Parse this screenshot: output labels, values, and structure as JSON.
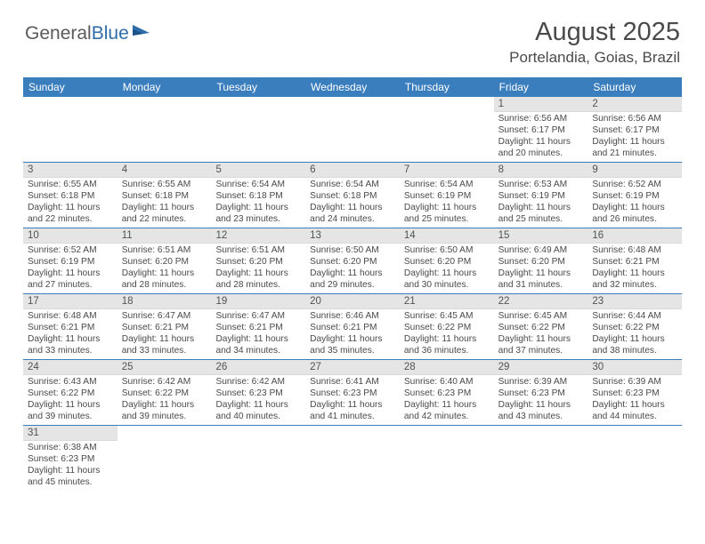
{
  "logo": {
    "text1": "General",
    "text2": "Blue"
  },
  "title": "August 2025",
  "location": "Portelandia, Goias, Brazil",
  "colors": {
    "headerBar": "#3a7ebd",
    "dayStripe": "#e5e5e5",
    "rowBorder": "#3a7ebd",
    "bodyText": "#4a4a4a",
    "background": "#ffffff"
  },
  "days": [
    "Sunday",
    "Monday",
    "Tuesday",
    "Wednesday",
    "Thursday",
    "Friday",
    "Saturday"
  ],
  "weeks": [
    [
      null,
      null,
      null,
      null,
      null,
      {
        "n": "1",
        "sr": "Sunrise: 6:56 AM",
        "ss": "Sunset: 6:17 PM",
        "dl": "Daylight: 11 hours and 20 minutes."
      },
      {
        "n": "2",
        "sr": "Sunrise: 6:56 AM",
        "ss": "Sunset: 6:17 PM",
        "dl": "Daylight: 11 hours and 21 minutes."
      }
    ],
    [
      {
        "n": "3",
        "sr": "Sunrise: 6:55 AM",
        "ss": "Sunset: 6:18 PM",
        "dl": "Daylight: 11 hours and 22 minutes."
      },
      {
        "n": "4",
        "sr": "Sunrise: 6:55 AM",
        "ss": "Sunset: 6:18 PM",
        "dl": "Daylight: 11 hours and 22 minutes."
      },
      {
        "n": "5",
        "sr": "Sunrise: 6:54 AM",
        "ss": "Sunset: 6:18 PM",
        "dl": "Daylight: 11 hours and 23 minutes."
      },
      {
        "n": "6",
        "sr": "Sunrise: 6:54 AM",
        "ss": "Sunset: 6:18 PM",
        "dl": "Daylight: 11 hours and 24 minutes."
      },
      {
        "n": "7",
        "sr": "Sunrise: 6:54 AM",
        "ss": "Sunset: 6:19 PM",
        "dl": "Daylight: 11 hours and 25 minutes."
      },
      {
        "n": "8",
        "sr": "Sunrise: 6:53 AM",
        "ss": "Sunset: 6:19 PM",
        "dl": "Daylight: 11 hours and 25 minutes."
      },
      {
        "n": "9",
        "sr": "Sunrise: 6:52 AM",
        "ss": "Sunset: 6:19 PM",
        "dl": "Daylight: 11 hours and 26 minutes."
      }
    ],
    [
      {
        "n": "10",
        "sr": "Sunrise: 6:52 AM",
        "ss": "Sunset: 6:19 PM",
        "dl": "Daylight: 11 hours and 27 minutes."
      },
      {
        "n": "11",
        "sr": "Sunrise: 6:51 AM",
        "ss": "Sunset: 6:20 PM",
        "dl": "Daylight: 11 hours and 28 minutes."
      },
      {
        "n": "12",
        "sr": "Sunrise: 6:51 AM",
        "ss": "Sunset: 6:20 PM",
        "dl": "Daylight: 11 hours and 28 minutes."
      },
      {
        "n": "13",
        "sr": "Sunrise: 6:50 AM",
        "ss": "Sunset: 6:20 PM",
        "dl": "Daylight: 11 hours and 29 minutes."
      },
      {
        "n": "14",
        "sr": "Sunrise: 6:50 AM",
        "ss": "Sunset: 6:20 PM",
        "dl": "Daylight: 11 hours and 30 minutes."
      },
      {
        "n": "15",
        "sr": "Sunrise: 6:49 AM",
        "ss": "Sunset: 6:20 PM",
        "dl": "Daylight: 11 hours and 31 minutes."
      },
      {
        "n": "16",
        "sr": "Sunrise: 6:48 AM",
        "ss": "Sunset: 6:21 PM",
        "dl": "Daylight: 11 hours and 32 minutes."
      }
    ],
    [
      {
        "n": "17",
        "sr": "Sunrise: 6:48 AM",
        "ss": "Sunset: 6:21 PM",
        "dl": "Daylight: 11 hours and 33 minutes."
      },
      {
        "n": "18",
        "sr": "Sunrise: 6:47 AM",
        "ss": "Sunset: 6:21 PM",
        "dl": "Daylight: 11 hours and 33 minutes."
      },
      {
        "n": "19",
        "sr": "Sunrise: 6:47 AM",
        "ss": "Sunset: 6:21 PM",
        "dl": "Daylight: 11 hours and 34 minutes."
      },
      {
        "n": "20",
        "sr": "Sunrise: 6:46 AM",
        "ss": "Sunset: 6:21 PM",
        "dl": "Daylight: 11 hours and 35 minutes."
      },
      {
        "n": "21",
        "sr": "Sunrise: 6:45 AM",
        "ss": "Sunset: 6:22 PM",
        "dl": "Daylight: 11 hours and 36 minutes."
      },
      {
        "n": "22",
        "sr": "Sunrise: 6:45 AM",
        "ss": "Sunset: 6:22 PM",
        "dl": "Daylight: 11 hours and 37 minutes."
      },
      {
        "n": "23",
        "sr": "Sunrise: 6:44 AM",
        "ss": "Sunset: 6:22 PM",
        "dl": "Daylight: 11 hours and 38 minutes."
      }
    ],
    [
      {
        "n": "24",
        "sr": "Sunrise: 6:43 AM",
        "ss": "Sunset: 6:22 PM",
        "dl": "Daylight: 11 hours and 39 minutes."
      },
      {
        "n": "25",
        "sr": "Sunrise: 6:42 AM",
        "ss": "Sunset: 6:22 PM",
        "dl": "Daylight: 11 hours and 39 minutes."
      },
      {
        "n": "26",
        "sr": "Sunrise: 6:42 AM",
        "ss": "Sunset: 6:23 PM",
        "dl": "Daylight: 11 hours and 40 minutes."
      },
      {
        "n": "27",
        "sr": "Sunrise: 6:41 AM",
        "ss": "Sunset: 6:23 PM",
        "dl": "Daylight: 11 hours and 41 minutes."
      },
      {
        "n": "28",
        "sr": "Sunrise: 6:40 AM",
        "ss": "Sunset: 6:23 PM",
        "dl": "Daylight: 11 hours and 42 minutes."
      },
      {
        "n": "29",
        "sr": "Sunrise: 6:39 AM",
        "ss": "Sunset: 6:23 PM",
        "dl": "Daylight: 11 hours and 43 minutes."
      },
      {
        "n": "30",
        "sr": "Sunrise: 6:39 AM",
        "ss": "Sunset: 6:23 PM",
        "dl": "Daylight: 11 hours and 44 minutes."
      }
    ],
    [
      {
        "n": "31",
        "sr": "Sunrise: 6:38 AM",
        "ss": "Sunset: 6:23 PM",
        "dl": "Daylight: 11 hours and 45 minutes."
      },
      null,
      null,
      null,
      null,
      null,
      null
    ]
  ]
}
